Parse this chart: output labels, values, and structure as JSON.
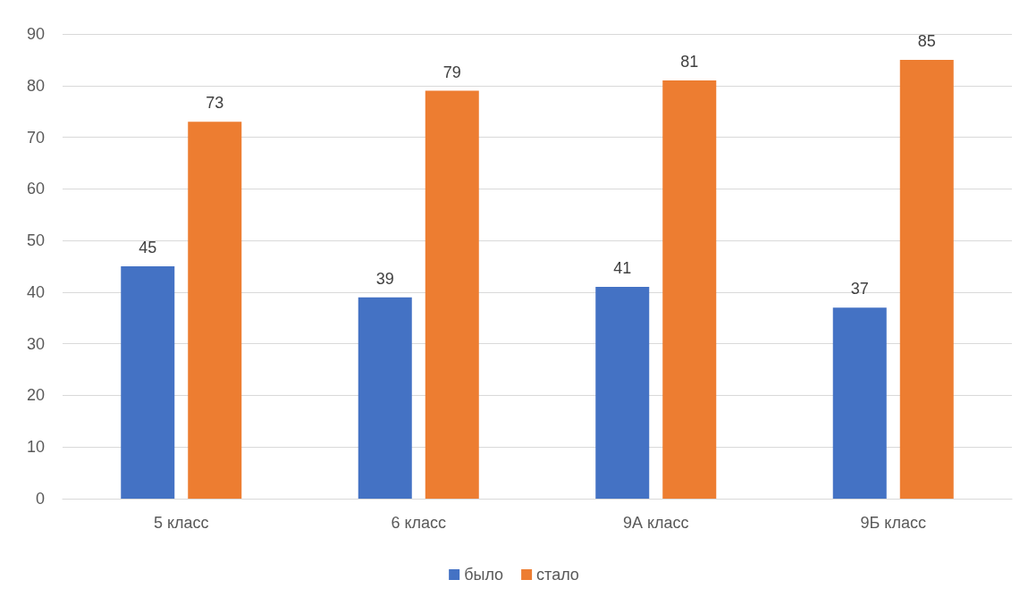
{
  "chart_data": {
    "type": "bar",
    "categories": [
      "5 класс",
      "6 класс",
      "9А класс",
      "9Б класс"
    ],
    "series": [
      {
        "name": "было",
        "color": "#4472c4",
        "values": [
          45,
          39,
          41,
          37
        ]
      },
      {
        "name": "стало",
        "color": "#ed7d31",
        "values": [
          73,
          79,
          81,
          85
        ]
      }
    ],
    "ylim": [
      0,
      90
    ],
    "yticks": [
      0,
      10,
      20,
      30,
      40,
      50,
      60,
      70,
      80,
      90
    ],
    "grid": "y",
    "legend": "bottom",
    "data_labels": true
  }
}
